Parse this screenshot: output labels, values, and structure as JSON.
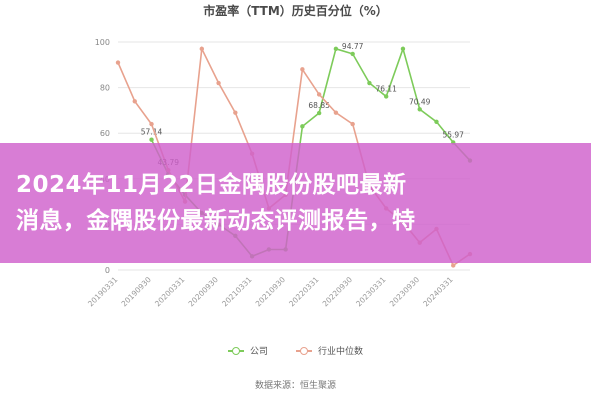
{
  "chart_data": {
    "type": "line",
    "title": "市盈率（TTM）历史百分位（%）",
    "ylim": [
      0,
      100
    ],
    "yticks": [
      0,
      20,
      40,
      60,
      80,
      100
    ],
    "x": [
      "20190331",
      "20190630",
      "20190930",
      "20191231",
      "20200331",
      "20200630",
      "20200930",
      "20201231",
      "20210331",
      "20210630",
      "20210930",
      "20211231",
      "20220331",
      "20220630",
      "20220930",
      "20221231",
      "20230331",
      "20230630",
      "20230930",
      "20231231",
      "20240331",
      "20240630"
    ],
    "xtick_labels": [
      "20190331",
      "20190930",
      "20200331",
      "20200930",
      "20210331",
      "20210930",
      "20220331",
      "20220930",
      "20230331",
      "20230930",
      "20240331"
    ],
    "series": [
      {
        "name": "公司",
        "color": "#7dcb5a",
        "values": [
          null,
          null,
          57.14,
          42,
          33,
          25,
          20,
          15,
          6,
          9,
          9,
          63,
          68.85,
          97,
          94.77,
          82,
          76.11,
          97,
          70.49,
          65,
          55.97,
          48
        ],
        "labels": [
          {
            "i": 2,
            "text": "57.14"
          },
          {
            "i": 12,
            "text": "68.85"
          },
          {
            "i": 14,
            "text": "94.77"
          },
          {
            "i": 16,
            "text": "76.11"
          },
          {
            "i": 18,
            "text": "70.49"
          },
          {
            "i": 20,
            "text": "55.97"
          }
        ]
      },
      {
        "name": "行业中位数",
        "color": "#e8a28e",
        "values": [
          91,
          74,
          64,
          43.79,
          30,
          97,
          82,
          69,
          51,
          27,
          33,
          88,
          77,
          69,
          64,
          37,
          27,
          21,
          12,
          18,
          2,
          7
        ],
        "labels": [
          {
            "i": 3,
            "text": "43.79"
          }
        ]
      }
    ],
    "legend_position": "bottom-center",
    "grid": true
  },
  "source": "数据来源：恒生聚源",
  "banner": {
    "line1": "2024年11月22日金隅股份股吧最新",
    "line2": "消息，金隅股份最新动态评测报告，特",
    "background": "#d060cc"
  }
}
